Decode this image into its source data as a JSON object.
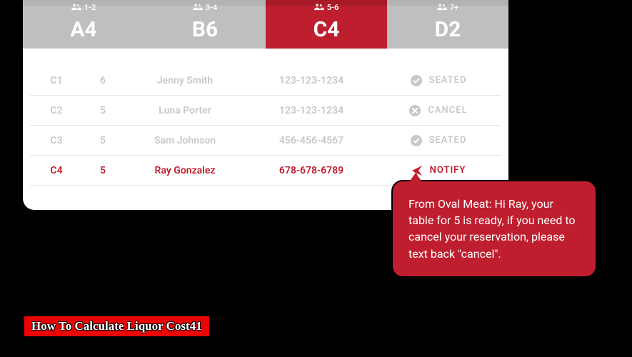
{
  "tabs": [
    {
      "range": "1-2",
      "code": "A4",
      "active": false
    },
    {
      "range": "3-4",
      "code": "B6",
      "active": false
    },
    {
      "range": "5-6",
      "code": "C4",
      "active": true
    },
    {
      "range": "7+",
      "code": "D2",
      "active": false
    }
  ],
  "rows": [
    {
      "code": "C1",
      "count": "6",
      "name": "Jenny Smith",
      "phone": "123-123-1234",
      "status": "SEATED",
      "icon": "check",
      "active": false
    },
    {
      "code": "C2",
      "count": "5",
      "name": "Luna Porter",
      "phone": "123-123-1234",
      "status": "CANCEL",
      "icon": "cancel",
      "active": false
    },
    {
      "code": "C3",
      "count": "5",
      "name": "Sam Johnson",
      "phone": "456-456-4567",
      "status": "SEATED",
      "icon": "check",
      "active": false
    },
    {
      "code": "C4",
      "count": "5",
      "name": "Ray Gonzalez",
      "phone": "678-678-6789",
      "status": "NOTIFY",
      "icon": "send",
      "active": true
    }
  ],
  "bubble_text": "From Oval Meat: Hi Ray, your table for 5 is ready, if you need to cancel your reservation, please text back \"cancel\".",
  "caption": "How To Calculate Liquor Cost41",
  "colors": {
    "brand_red": "#bf1e2e",
    "inactive_gray": "#bfbfbf",
    "row_inactive_text": "#c8c8c8",
    "caption_red": "#eb0404"
  }
}
